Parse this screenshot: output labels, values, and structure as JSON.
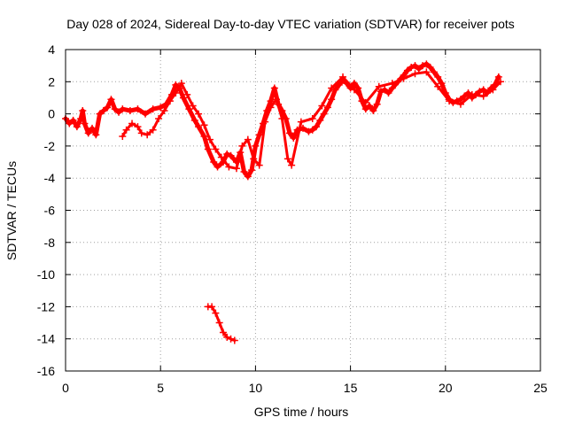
{
  "chart_data": {
    "type": "scatter",
    "title": "Day 028 of 2024, Sidereal Day-to-day VTEC variation (SDTVAR) for receiver pots",
    "xlabel": "GPS time / hours",
    "ylabel": "SDTVAR / TECUs",
    "xlim": [
      0,
      25
    ],
    "ylim": [
      -16,
      4
    ],
    "xticks": [
      0,
      5,
      10,
      15,
      20,
      25
    ],
    "yticks": [
      4,
      2,
      0,
      -2,
      -4,
      -6,
      -8,
      -10,
      -12,
      -14,
      -16
    ],
    "grid": true,
    "marker": "+",
    "color": "#ff0000",
    "series": [
      {
        "name": "main",
        "points": [
          [
            0.0,
            -0.3
          ],
          [
            0.2,
            -0.6
          ],
          [
            0.4,
            -0.4
          ],
          [
            0.6,
            -0.8
          ],
          [
            0.8,
            -0.3
          ],
          [
            0.9,
            0.2
          ],
          [
            1.0,
            -0.6
          ],
          [
            1.2,
            -1.2
          ],
          [
            1.4,
            -0.9
          ],
          [
            1.6,
            -1.3
          ],
          [
            1.8,
            0.0
          ],
          [
            2.0,
            0.2
          ],
          [
            2.2,
            0.4
          ],
          [
            2.4,
            0.9
          ],
          [
            2.6,
            0.3
          ],
          [
            2.8,
            0.1
          ],
          [
            3.0,
            0.3
          ],
          [
            3.4,
            0.2
          ],
          [
            3.8,
            0.3
          ],
          [
            4.2,
            0.0
          ],
          [
            4.6,
            0.3
          ],
          [
            5.0,
            0.4
          ],
          [
            5.3,
            0.6
          ],
          [
            5.6,
            1.2
          ],
          [
            5.8,
            1.8
          ],
          [
            6.0,
            1.6
          ],
          [
            6.2,
            1.0
          ],
          [
            6.5,
            0.3
          ],
          [
            6.8,
            -0.4
          ],
          [
            7.0,
            -0.8
          ],
          [
            7.3,
            -1.4
          ],
          [
            7.5,
            -2.2
          ],
          [
            7.8,
            -3.0
          ],
          [
            8.0,
            -3.3
          ],
          [
            8.3,
            -3.0
          ],
          [
            8.5,
            -2.5
          ],
          [
            8.7,
            -2.6
          ],
          [
            9.0,
            -3.0
          ],
          [
            9.2,
            -2.4
          ],
          [
            9.4,
            -3.6
          ],
          [
            9.6,
            -3.9
          ],
          [
            9.8,
            -3.5
          ],
          [
            10.0,
            -2.0
          ],
          [
            10.2,
            -1.3
          ],
          [
            10.4,
            -0.6
          ],
          [
            10.6,
            0.2
          ],
          [
            10.8,
            0.8
          ],
          [
            11.0,
            1.6
          ],
          [
            11.2,
            0.6
          ],
          [
            11.4,
            0.2
          ],
          [
            11.6,
            -0.3
          ],
          [
            11.8,
            -1.2
          ],
          [
            12.0,
            -1.5
          ],
          [
            12.2,
            -1.0
          ],
          [
            12.5,
            -0.9
          ],
          [
            12.8,
            -1.1
          ],
          [
            13.0,
            -1.0
          ],
          [
            13.2,
            -0.8
          ],
          [
            13.4,
            -0.4
          ],
          [
            13.6,
            0.0
          ],
          [
            13.8,
            0.4
          ],
          [
            14.0,
            0.9
          ],
          [
            14.2,
            1.5
          ],
          [
            14.4,
            1.8
          ],
          [
            14.6,
            2.1
          ],
          [
            14.8,
            1.9
          ],
          [
            15.0,
            1.6
          ],
          [
            15.2,
            1.9
          ],
          [
            15.4,
            1.6
          ],
          [
            15.6,
            0.8
          ],
          [
            15.8,
            0.3
          ],
          [
            16.0,
            0.5
          ],
          [
            16.2,
            0.2
          ],
          [
            16.4,
            0.6
          ],
          [
            16.6,
            1.4
          ],
          [
            16.8,
            1.5
          ],
          [
            17.0,
            1.3
          ],
          [
            17.2,
            1.6
          ],
          [
            17.5,
            2.0
          ],
          [
            17.8,
            2.4
          ],
          [
            18.0,
            2.7
          ],
          [
            18.2,
            2.9
          ],
          [
            18.4,
            3.0
          ],
          [
            18.6,
            2.8
          ],
          [
            18.8,
            3.0
          ],
          [
            19.0,
            3.1
          ],
          [
            19.2,
            2.9
          ],
          [
            19.4,
            2.6
          ],
          [
            19.6,
            2.3
          ],
          [
            19.8,
            1.9
          ],
          [
            20.0,
            1.3
          ],
          [
            20.2,
            0.9
          ],
          [
            20.4,
            0.7
          ],
          [
            20.6,
            0.8
          ],
          [
            20.8,
            0.9
          ],
          [
            21.0,
            1.1
          ],
          [
            21.2,
            1.3
          ],
          [
            21.4,
            1.0
          ],
          [
            21.6,
            1.2
          ],
          [
            21.8,
            1.4
          ],
          [
            22.0,
            1.5
          ],
          [
            22.2,
            1.3
          ],
          [
            22.4,
            1.6
          ],
          [
            22.6,
            1.8
          ],
          [
            22.8,
            2.3
          ]
        ]
      },
      {
        "name": "secondary",
        "points": [
          [
            3.0,
            -1.4
          ],
          [
            3.2,
            -1.0
          ],
          [
            3.5,
            -0.6
          ],
          [
            3.8,
            -0.8
          ],
          [
            4.0,
            -1.2
          ],
          [
            4.3,
            -1.3
          ],
          [
            4.6,
            -1.0
          ],
          [
            4.9,
            -0.3
          ],
          [
            5.2,
            0.2
          ],
          [
            5.5,
            0.8
          ],
          [
            5.8,
            1.3
          ],
          [
            6.1,
            1.9
          ],
          [
            6.4,
            1.2
          ],
          [
            6.7,
            0.5
          ],
          [
            7.0,
            0.0
          ],
          [
            7.3,
            -0.7
          ],
          [
            7.6,
            -1.6
          ],
          [
            7.9,
            -2.2
          ],
          [
            8.2,
            -2.7
          ],
          [
            8.6,
            -3.3
          ],
          [
            9.0,
            -3.4
          ],
          [
            9.3,
            -2.0
          ],
          [
            9.6,
            -1.6
          ],
          [
            9.9,
            -2.8
          ],
          [
            10.2,
            -3.2
          ],
          [
            10.5,
            -0.5
          ],
          [
            10.8,
            0.4
          ],
          [
            11.1,
            0.9
          ],
          [
            11.4,
            -0.3
          ],
          [
            11.7,
            -2.8
          ],
          [
            11.9,
            -3.2
          ],
          [
            12.4,
            -0.5
          ],
          [
            13.0,
            -0.3
          ],
          [
            13.5,
            0.5
          ],
          [
            14.0,
            1.6
          ],
          [
            14.6,
            2.3
          ],
          [
            15.2,
            1.5
          ],
          [
            15.8,
            0.7
          ],
          [
            16.5,
            1.7
          ],
          [
            17.2,
            1.9
          ],
          [
            17.8,
            2.2
          ],
          [
            18.4,
            2.5
          ],
          [
            19.0,
            2.6
          ],
          [
            19.6,
            1.7
          ],
          [
            20.2,
            0.8
          ],
          [
            20.8,
            0.6
          ],
          [
            21.4,
            1.2
          ],
          [
            22.0,
            1.1
          ],
          [
            22.5,
            1.5
          ],
          [
            22.9,
            2.0
          ]
        ]
      },
      {
        "name": "outlier",
        "points": [
          [
            7.5,
            -12.0
          ],
          [
            7.7,
            -12.0
          ],
          [
            7.9,
            -12.4
          ],
          [
            8.1,
            -13.0
          ],
          [
            8.3,
            -13.6
          ],
          [
            8.5,
            -13.9
          ],
          [
            8.7,
            -14.0
          ],
          [
            8.9,
            -14.1
          ]
        ]
      }
    ]
  }
}
